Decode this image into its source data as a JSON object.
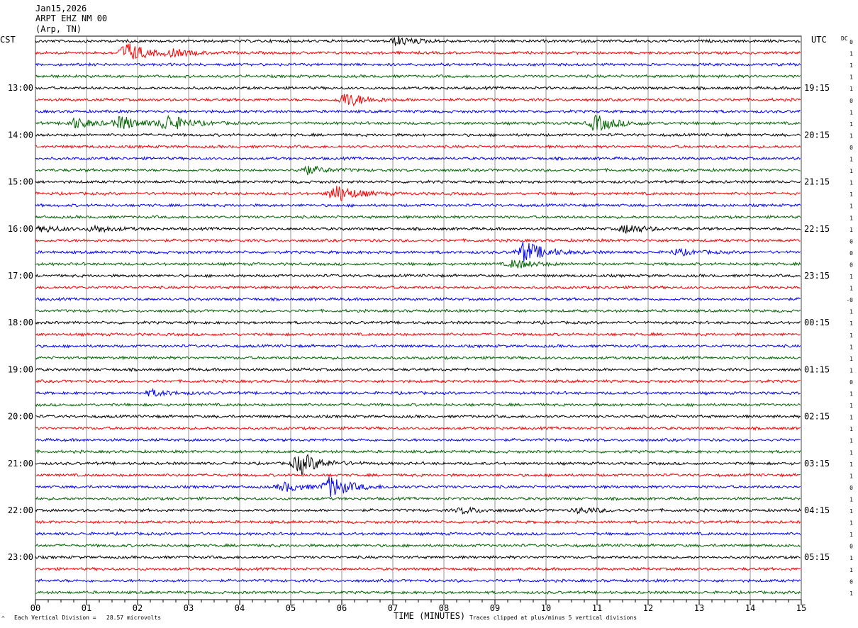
{
  "header": {
    "date": "Jan15,2026",
    "station": "ARPT EHZ NM 00",
    "location": "(Arp, TN)"
  },
  "left_zone_label": "CST",
  "right_zone_label": "UTC",
  "dc_label": "DC",
  "footer": {
    "scale_note": "Each Vertical Division =   28.57 microvolts",
    "x_axis_title": "TIME (MINUTES)",
    "clip_note": "Traces clipped at plus/minus 5 vertical divisions",
    "corner_mark": "^"
  },
  "colors": {
    "trace_cycle": [
      "#000000",
      "#ff0000",
      "#0000ff",
      "#006400"
    ],
    "grid": "#000000",
    "background": "#ffffff"
  },
  "chart_data": {
    "type": "line",
    "title": "",
    "x": {
      "label": "TIME (MINUTES)",
      "range": [
        0,
        15
      ],
      "ticks": [
        "00",
        "01",
        "02",
        "03",
        "04",
        "05",
        "06",
        "07",
        "08",
        "09",
        "10",
        "11",
        "12",
        "13",
        "14",
        "15"
      ],
      "minor_ticks_per_minute": 4
    },
    "traces_per_hour": 4,
    "trace_count": 48,
    "local_hour_labels": [
      "13:00",
      "14:00",
      "15:00",
      "16:00",
      "17:00",
      "18:00",
      "19:00",
      "20:00",
      "21:00",
      "22:00",
      "23:00"
    ],
    "utc_hour_labels": [
      "19:15",
      "20:15",
      "21:15",
      "22:15",
      "23:15",
      "00:15",
      "01:15",
      "02:15",
      "03:15",
      "04:15",
      "05:15"
    ],
    "dc_offsets": [
      "0",
      "1",
      "1",
      "1",
      "1",
      "0",
      "1",
      "1",
      "1",
      "0",
      "1",
      "1",
      "1",
      "1",
      "1",
      "1",
      "1",
      "0",
      "0",
      "0",
      "1",
      "1",
      "-0",
      "1",
      "1",
      "1",
      "1",
      "1",
      "1",
      "0",
      "1",
      "1",
      "1",
      "1",
      "1",
      "1",
      "1",
      "1",
      "0",
      "1",
      "1",
      "1",
      "1",
      "0",
      "1",
      "1",
      "0",
      "1"
    ],
    "events": [
      {
        "trace": 0,
        "minute": 7.1,
        "amp": 6
      },
      {
        "trace": 1,
        "minute": 1.8,
        "amp": 14
      },
      {
        "trace": 1,
        "minute": 2.7,
        "amp": 4
      },
      {
        "trace": 5,
        "minute": 6.1,
        "amp": 10
      },
      {
        "trace": 7,
        "minute": 0.8,
        "amp": 7
      },
      {
        "trace": 7,
        "minute": 1.7,
        "amp": 9
      },
      {
        "trace": 7,
        "minute": 2.6,
        "amp": 11
      },
      {
        "trace": 7,
        "minute": 11.0,
        "amp": 11
      },
      {
        "trace": 11,
        "minute": 5.3,
        "amp": 6
      },
      {
        "trace": 13,
        "minute": 5.9,
        "amp": 12
      },
      {
        "trace": 16,
        "minute": 0.2,
        "amp": 4
      },
      {
        "trace": 16,
        "minute": 1.2,
        "amp": 4
      },
      {
        "trace": 16,
        "minute": 11.6,
        "amp": 6
      },
      {
        "trace": 18,
        "minute": 9.6,
        "amp": 15
      },
      {
        "trace": 18,
        "minute": 12.6,
        "amp": 4
      },
      {
        "trace": 19,
        "minute": 9.4,
        "amp": 6
      },
      {
        "trace": 30,
        "minute": 2.3,
        "amp": 4
      },
      {
        "trace": 36,
        "minute": 5.2,
        "amp": 15
      },
      {
        "trace": 38,
        "minute": 5.8,
        "amp": 14
      },
      {
        "trace": 38,
        "minute": 4.9,
        "amp": 6
      },
      {
        "trace": 40,
        "minute": 8.4,
        "amp": 4
      },
      {
        "trace": 40,
        "minute": 10.7,
        "amp": 4
      }
    ],
    "background_noise_amp": 2.2,
    "grid": true
  }
}
